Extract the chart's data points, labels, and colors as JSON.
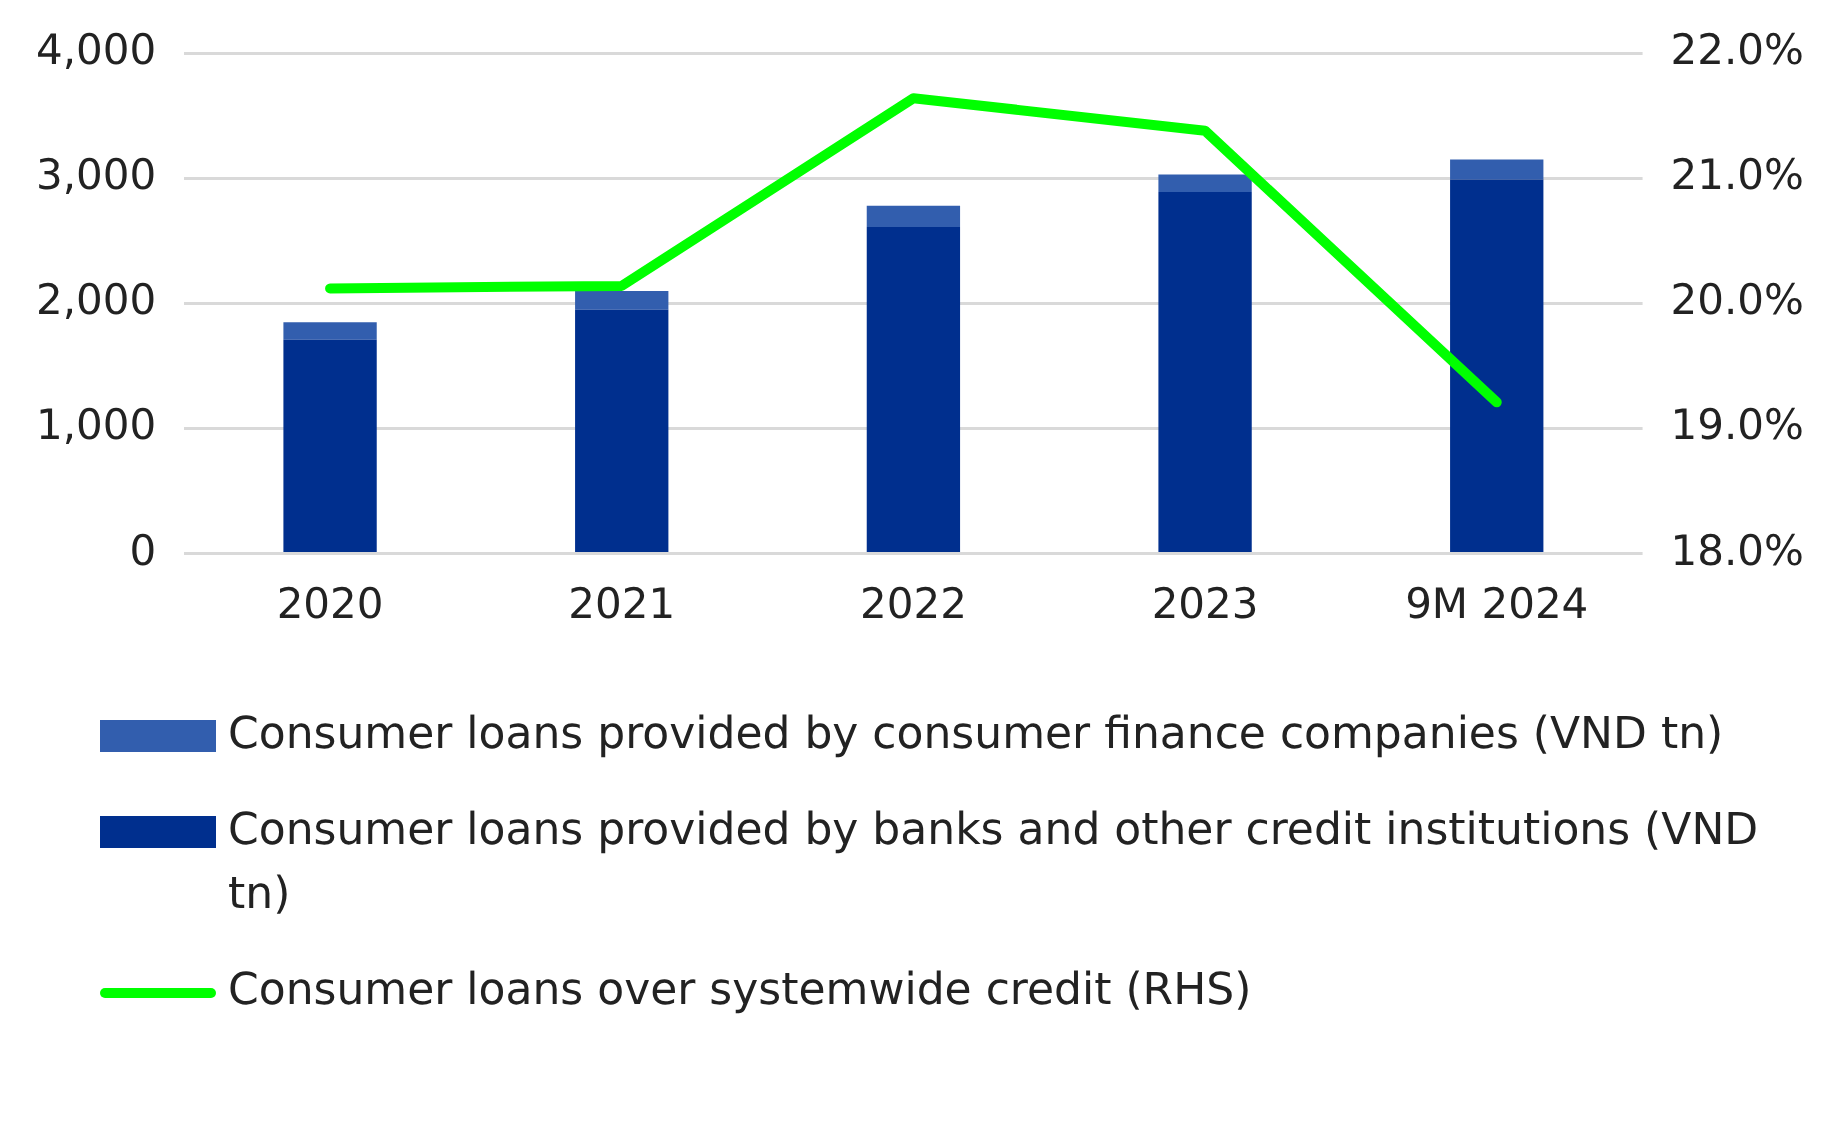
{
  "chart_data": {
    "type": "bar",
    "stacked": true,
    "categories": [
      "2020",
      "2021",
      "2022",
      "2023",
      "9M 2024"
    ],
    "series": [
      {
        "name": "Consumer loans provided by banks and other credit institutions (VND tn)",
        "color": "#002f8e",
        "values": [
          1710,
          1950,
          2610,
          2890,
          2990
        ]
      },
      {
        "name": "Consumer loans provided by consumer finance companies (VND tn)",
        "color": "#325eae",
        "values": [
          140,
          150,
          170,
          140,
          160
        ]
      },
      {
        "name": "Consumer loans over systemwide credit (RHS)",
        "type": "line",
        "axis": "y2",
        "color": "#00ff00",
        "values": [
          20.12,
          20.14,
          21.64,
          21.38,
          19.21
        ]
      }
    ],
    "ylim": [
      0,
      4000
    ],
    "yticks": [
      {
        "value": 0,
        "label": "0"
      },
      {
        "value": 1000,
        "label": "1,000"
      },
      {
        "value": 2000,
        "label": "2,000"
      },
      {
        "value": 3000,
        "label": "3,000"
      },
      {
        "value": 4000,
        "label": "4,000"
      }
    ],
    "y2lim": [
      18,
      22
    ],
    "y2ticks": [
      {
        "value": 18,
        "label": "18.0%"
      },
      {
        "value": 19,
        "label": "19.0%"
      },
      {
        "value": 20,
        "label": "20.0%"
      },
      {
        "value": 21,
        "label": "21.0%"
      },
      {
        "value": 22,
        "label": "22.0%"
      }
    ],
    "grid": "y",
    "legend": "bottom",
    "marker": "none",
    "line_style": "solid"
  }
}
